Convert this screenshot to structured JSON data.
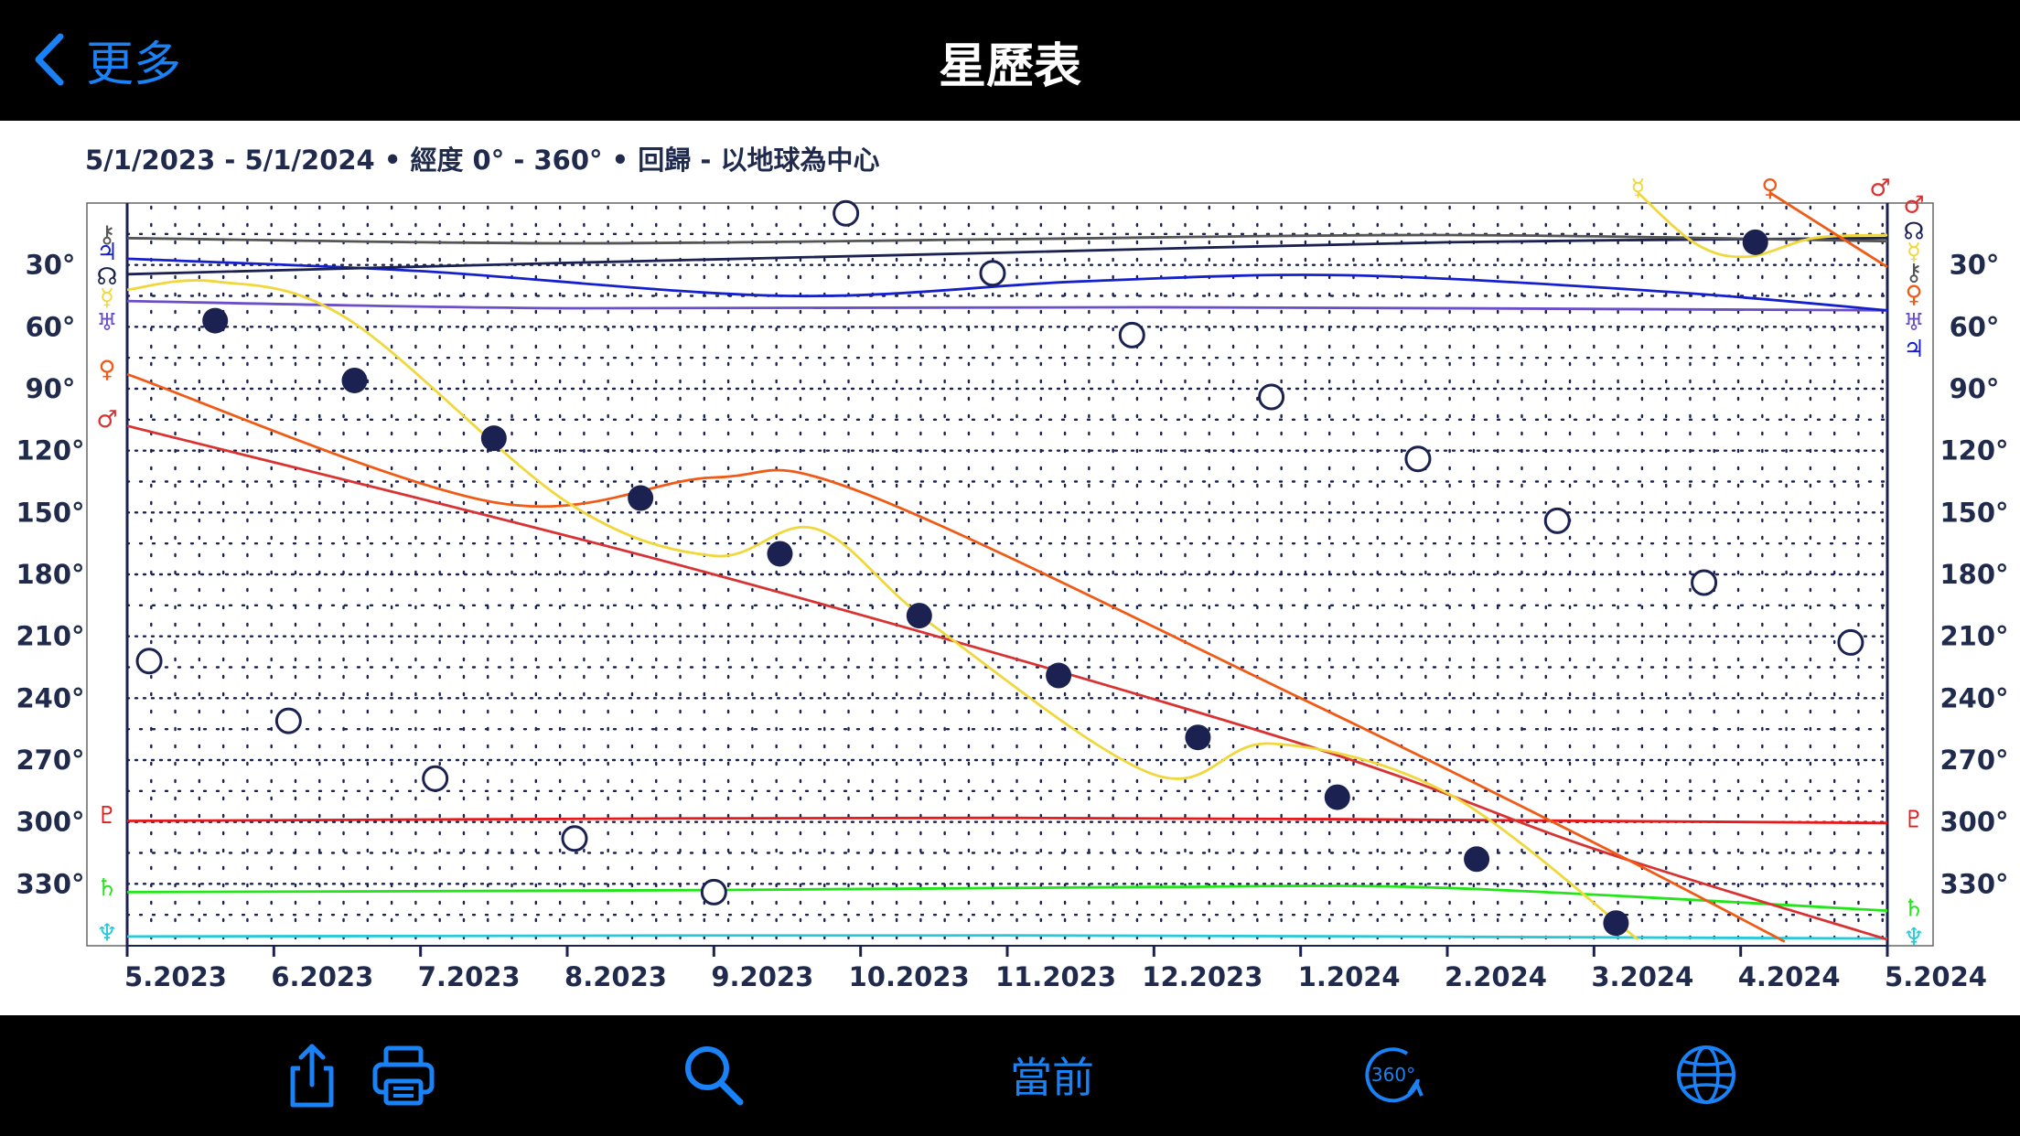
{
  "header": {
    "back_label": "更多",
    "title": "星歷表"
  },
  "subtitle": "5/1/2023 - 5/1/2024  •  經度  0° - 360°  •  回歸 - 以地球為中心",
  "toolbar": {
    "share_icon": "share-icon",
    "print_icon": "printer-icon",
    "search_icon": "search-icon",
    "now_label": "當前",
    "rotate_icon": "rotate-360-icon",
    "rotate_label": "360°",
    "globe_icon": "globe-icon",
    "accent_color": "#1a82f7"
  },
  "chart_data": {
    "type": "line",
    "x_ticks": [
      "5.2023",
      "6.2023",
      "7.2023",
      "8.2023",
      "9.2023",
      "10.2023",
      "11.2023",
      "12.2023",
      "1.2024",
      "2.2024",
      "3.2024",
      "4.2024",
      "5.2024"
    ],
    "y_ticks": [
      "30°",
      "60°",
      "90°",
      "120°",
      "150°",
      "180°",
      "210°",
      "240°",
      "270°",
      "300°",
      "330°"
    ],
    "y_axis": "longitude (deg), 0 at top, 360 at bottom",
    "xlim": [
      "5/1/2023",
      "5/1/2024"
    ],
    "ylim": [
      0,
      360
    ],
    "grid": true,
    "series": [
      {
        "symbol": "♄",
        "color": "#22e51a",
        "points": [
          [
            0,
            334
          ],
          [
            4,
            333
          ],
          [
            7,
            331.5
          ],
          [
            9,
            332
          ],
          [
            12,
            343
          ]
        ]
      },
      {
        "symbol": "♆",
        "color": "#28c8d8",
        "points": [
          [
            0,
            355.5
          ],
          [
            6,
            355
          ],
          [
            12,
            356.5
          ]
        ]
      },
      {
        "symbol": "♇",
        "color": "#e51a1a",
        "points": [
          [
            0,
            299.5
          ],
          [
            6,
            298
          ],
          [
            12,
            300.5
          ]
        ]
      },
      {
        "symbol": "♅",
        "color": "#6a4fc8",
        "points": [
          [
            0,
            47.5
          ],
          [
            3,
            51
          ],
          [
            7,
            50.5
          ],
          [
            12,
            52
          ]
        ]
      },
      {
        "symbol": "♃",
        "color": "#1520cc",
        "points": [
          [
            0,
            27
          ],
          [
            2,
            33
          ],
          [
            4.5,
            45
          ],
          [
            6.5,
            38
          ],
          [
            8.3,
            35
          ],
          [
            10.5,
            43
          ],
          [
            12,
            52
          ]
        ]
      },
      {
        "symbol": "☊",
        "color": "#1b2150",
        "points": [
          [
            0,
            34.5
          ],
          [
            3,
            29
          ],
          [
            6,
            24
          ],
          [
            9,
            19
          ],
          [
            12,
            17
          ]
        ]
      },
      {
        "symbol": "⚷",
        "color": "#555555",
        "points": [
          [
            0,
            17
          ],
          [
            3,
            19.5
          ],
          [
            6,
            17.5
          ],
          [
            9,
            15.5
          ],
          [
            12,
            18.5
          ]
        ]
      },
      {
        "symbol": "♂",
        "color": "#d83232",
        "points": [
          [
            0,
            108
          ],
          [
            4,
            180
          ],
          [
            8,
            262
          ],
          [
            10,
            313
          ],
          [
            12,
            357
          ]
        ]
      },
      {
        "symbol": "♀",
        "color": "#f05a14",
        "points": [
          [
            0,
            83
          ],
          [
            2.5,
            145
          ],
          [
            4,
            133
          ],
          [
            5,
            140
          ],
          [
            8,
            240
          ],
          [
            10,
            310
          ],
          [
            11.3,
            358
          ]
        ]
      },
      {
        "symbol": "☿",
        "color": "#f0d83c",
        "points": [
          [
            0,
            42
          ],
          [
            0.6,
            38
          ],
          [
            1.5,
            56
          ],
          [
            3,
            145
          ],
          [
            4,
            171
          ],
          [
            4.7,
            158
          ],
          [
            5.5,
            205
          ],
          [
            7,
            277
          ],
          [
            7.8,
            262
          ],
          [
            9,
            286
          ],
          [
            10.3,
            357
          ]
        ]
      }
    ],
    "moon_full": [
      [
        0.15,
        222
      ],
      [
        1.1,
        251
      ],
      [
        2.1,
        279
      ],
      [
        3.05,
        308
      ],
      [
        4,
        334
      ],
      [
        4.9,
        5
      ],
      [
        5.9,
        34
      ],
      [
        6.85,
        64
      ],
      [
        7.8,
        94
      ],
      [
        8.8,
        124
      ],
      [
        9.75,
        154
      ],
      [
        10.75,
        184
      ],
      [
        11.75,
        213
      ]
    ],
    "moon_new": [
      [
        0.6,
        57
      ],
      [
        1.55,
        86
      ],
      [
        2.5,
        114
      ],
      [
        3.5,
        143
      ],
      [
        4.45,
        170
      ],
      [
        5.4,
        200
      ],
      [
        6.35,
        229
      ],
      [
        7.3,
        259
      ],
      [
        8.25,
        288
      ],
      [
        9.2,
        318
      ],
      [
        10.15,
        349
      ],
      [
        11.1,
        19
      ]
    ],
    "left_symbols": [
      {
        "s": "⚷",
        "deg": 15.5,
        "c": "#555555"
      },
      {
        "s": "♃",
        "deg": 24,
        "c": "#1520cc"
      },
      {
        "s": "☊",
        "deg": 36,
        "c": "#1b2150"
      },
      {
        "s": "☿",
        "deg": 46,
        "c": "#f0d83c"
      },
      {
        "s": "♅",
        "deg": 58,
        "c": "#6a4fc8"
      },
      {
        "s": "♀",
        "deg": 81,
        "c": "#f05a14"
      },
      {
        "s": "♂",
        "deg": 105,
        "c": "#d83232"
      },
      {
        "s": "♇",
        "deg": 297,
        "c": "#e51a1a"
      },
      {
        "s": "♄",
        "deg": 332,
        "c": "#22e51a"
      },
      {
        "s": "♆",
        "deg": 354,
        "c": "#28c8d8"
      }
    ],
    "right_symbols": [
      {
        "s": "♂",
        "deg": 1,
        "c": "#d83232"
      },
      {
        "s": "☊",
        "deg": 14,
        "c": "#1b2150"
      },
      {
        "s": "☿",
        "deg": 24,
        "c": "#f0d83c"
      },
      {
        "s": "⚷",
        "deg": 34,
        "c": "#555555"
      },
      {
        "s": "♀",
        "deg": 44.5,
        "c": "#f05a14"
      },
      {
        "s": "♅",
        "deg": 58,
        "c": "#6a4fc8"
      },
      {
        "s": "♃",
        "deg": 71,
        "c": "#1520cc"
      },
      {
        "s": "♇",
        "deg": 299,
        "c": "#e51a1a"
      },
      {
        "s": "♄",
        "deg": 342,
        "c": "#22e51a"
      },
      {
        "s": "♆",
        "deg": 356,
        "c": "#28c8d8"
      }
    ],
    "top_symbols": [
      {
        "s": "☿",
        "x": 10.3,
        "c": "#f0d83c"
      },
      {
        "s": "♀",
        "x": 11.2,
        "c": "#f05a14"
      },
      {
        "s": "♂",
        "x": 11.95,
        "c": "#d83232"
      }
    ],
    "top_lines": [
      {
        "c": "#f0d83c",
        "points": [
          [
            10.3,
            -5
          ],
          [
            10.7,
            20
          ],
          [
            11.05,
            26
          ],
          [
            11.5,
            17
          ],
          [
            12,
            15.5
          ]
        ]
      },
      {
        "c": "#f05a14",
        "points": [
          [
            11.2,
            -5
          ],
          [
            12,
            31
          ]
        ]
      }
    ]
  }
}
